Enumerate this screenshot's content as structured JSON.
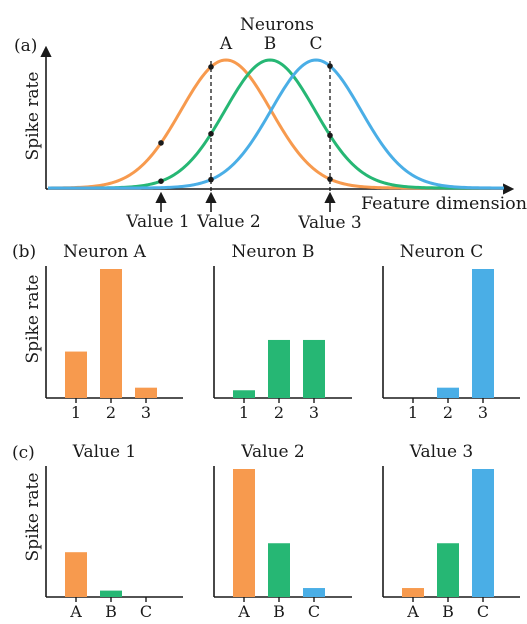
{
  "colors": {
    "neuron_a": "#f79a4e",
    "neuron_b": "#26b774",
    "neuron_c": "#4aaee6",
    "ink": "#1a1a1a"
  },
  "panel_a": {
    "label": "(a)",
    "title": "Neurons",
    "ylabel": "Spike rate",
    "xlabel": "Feature dimension",
    "curve_labels": [
      "A",
      "B",
      "C"
    ],
    "value_labels": [
      "Value 1",
      "Value 2",
      "Value 3"
    ]
  },
  "panel_b": {
    "label": "(b)",
    "ylabel": "Spike rate"
  },
  "panel_c": {
    "label": "(c)",
    "ylabel": "Spike rate"
  },
  "chart_data": [
    {
      "type": "line",
      "title": "Neurons",
      "xlabel": "Feature dimension",
      "ylabel": "Spike rate",
      "series": [
        {
          "name": "A",
          "shape": "gaussian",
          "color": "#f79a4e"
        },
        {
          "name": "B",
          "shape": "gaussian",
          "color": "#26b774"
        },
        {
          "name": "C",
          "shape": "gaussian",
          "color": "#4aaee6"
        }
      ],
      "markers": [
        "Value 1",
        "Value 2",
        "Value 3"
      ]
    },
    {
      "type": "bar",
      "title": "Neuron A",
      "categories": [
        "1",
        "2",
        "3"
      ],
      "values": [
        0.36,
        1.0,
        0.08
      ],
      "colors": [
        "#f79a4e",
        "#f79a4e",
        "#f79a4e"
      ]
    },
    {
      "type": "bar",
      "title": "Neuron B",
      "categories": [
        "1",
        "2",
        "3"
      ],
      "values": [
        0.06,
        0.45,
        0.45
      ],
      "colors": [
        "#26b774",
        "#26b774",
        "#26b774"
      ]
    },
    {
      "type": "bar",
      "title": "Neuron C",
      "categories": [
        "1",
        "2",
        "3"
      ],
      "values": [
        0.0,
        0.08,
        1.0
      ],
      "colors": [
        "#4aaee6",
        "#4aaee6",
        "#4aaee6"
      ]
    },
    {
      "type": "bar",
      "title": "Value 1",
      "categories": [
        "A",
        "B",
        "C"
      ],
      "values": [
        0.35,
        0.05,
        0.0
      ],
      "colors": [
        "#f79a4e",
        "#26b774",
        "#4aaee6"
      ]
    },
    {
      "type": "bar",
      "title": "Value 2",
      "categories": [
        "A",
        "B",
        "C"
      ],
      "values": [
        1.0,
        0.42,
        0.07
      ],
      "colors": [
        "#f79a4e",
        "#26b774",
        "#4aaee6"
      ]
    },
    {
      "type": "bar",
      "title": "Value 3",
      "categories": [
        "A",
        "B",
        "C"
      ],
      "values": [
        0.07,
        0.42,
        1.0
      ],
      "colors": [
        "#f79a4e",
        "#26b774",
        "#4aaee6"
      ]
    }
  ]
}
